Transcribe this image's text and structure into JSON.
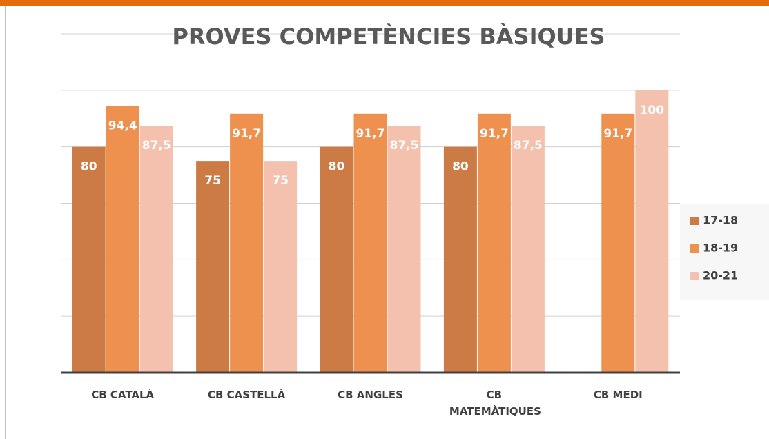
{
  "chart_data": {
    "type": "bar",
    "title": "PROVES COMPETÈNCIES BÀSIQUES",
    "categories": [
      "CB CATALÀ",
      "CB CASTELLÀ",
      "CB ANGLES",
      "CB MATEMÀTIQUES",
      "CB MEDI"
    ],
    "series": [
      {
        "name": "17-18",
        "color": "#cd7b45",
        "values": [
          80,
          75,
          80,
          80,
          null
        ],
        "value_labels": [
          "80",
          "75",
          "80",
          "80",
          null
        ]
      },
      {
        "name": "18-19",
        "color": "#ee914f",
        "values": [
          94.4,
          91.7,
          91.7,
          91.7,
          91.7
        ],
        "value_labels": [
          "94,4",
          "91,7",
          "91,7",
          "91,7",
          "91,7"
        ]
      },
      {
        "name": "20-21",
        "color": "#f4c1ae",
        "values": [
          87.5,
          75,
          87.5,
          87.5,
          100
        ],
        "value_labels": [
          "87,5",
          "75",
          "87,5",
          "87,5",
          "100"
        ]
      }
    ],
    "ylim": [
      0,
      120
    ],
    "yticks": [
      0,
      20,
      40,
      60,
      80,
      100,
      120
    ],
    "grid": true,
    "legend": "right"
  }
}
